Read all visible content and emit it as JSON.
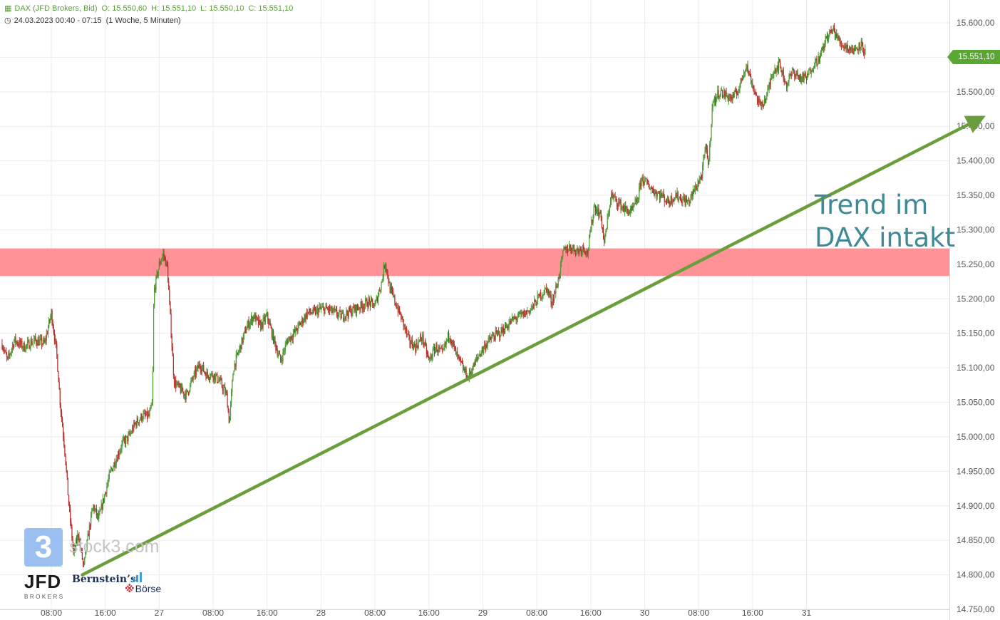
{
  "header": {
    "instrument": "DAX (JFD Brokers, Bid)",
    "open": "O: 15.550,60",
    "high": "H: 15.551,10",
    "low": "L: 15.550,10",
    "close": "C: 15.551,10",
    "period": "24.03.2023 00:40 - 07:15",
    "timeframe": "(1 Woche, 5 Minuten)",
    "icon": "candles-icon",
    "clock_icon": "clock-icon"
  },
  "last_price_label": "15.551,10",
  "annotation": {
    "line1": "Trend im",
    "line2": "DAX intakt"
  },
  "branding": {
    "stock3_mark": "3",
    "stock3_text": "stock3.com",
    "jfd_text": "JFD",
    "jfd_sub": "BROKERS",
    "bernstein_text": "Bernstein’s",
    "boerse_text": "Börse"
  },
  "colors": {
    "up": "#4f9a36",
    "down": "#b3312c",
    "zone": "#ff8c91",
    "trend": "#6a9e3c",
    "grid": "#ececec",
    "annotation": "#3f8a96"
  },
  "chart_data": {
    "type": "candlestick",
    "title": "DAX (JFD Brokers, Bid)",
    "ylim": [
      14750,
      15620
    ],
    "y_ticks": [
      14750,
      14800,
      14850,
      14900,
      14950,
      15000,
      15050,
      15100,
      15150,
      15200,
      15250,
      15300,
      15350,
      15400,
      15450,
      15500,
      15550,
      15600
    ],
    "y_tick_labels": [
      "14.750,00",
      "14.800,00",
      "14.850,00",
      "14.900,00",
      "14.950,00",
      "15.000,00",
      "15.050,00",
      "15.100,00",
      "15.150,00",
      "15.200,00",
      "15.250,00",
      "15.300,00",
      "15.350,00",
      "15.400,00",
      "15.450,00",
      "15.500,00",
      "15.550,00",
      "15.600,00"
    ],
    "x_ticks": [
      {
        "label": "08:00",
        "t": 8
      },
      {
        "label": "16:00",
        "t": 16
      },
      {
        "label": "27",
        "t": 24
      },
      {
        "label": "08:00",
        "t": 32
      },
      {
        "label": "16:00",
        "t": 40
      },
      {
        "label": "28",
        "t": 48
      },
      {
        "label": "08:00",
        "t": 56
      },
      {
        "label": "16:00",
        "t": 64
      },
      {
        "label": "29",
        "t": 72
      },
      {
        "label": "08:00",
        "t": 80
      },
      {
        "label": "16:00",
        "t": 88
      },
      {
        "label": "30",
        "t": 96
      },
      {
        "label": "08:00",
        "t": 104
      },
      {
        "label": "16:00",
        "t": 112
      },
      {
        "label": "31",
        "t": 120
      }
    ],
    "price_path": [
      [
        0.7,
        15135
      ],
      [
        1.5,
        15110
      ],
      [
        2.5,
        15140
      ],
      [
        4,
        15130
      ],
      [
        5.5,
        15140
      ],
      [
        7,
        15135
      ],
      [
        8,
        15180
      ],
      [
        8.8,
        15120
      ],
      [
        9.3,
        15050
      ],
      [
        10,
        14980
      ],
      [
        10.6,
        14900
      ],
      [
        11.3,
        14830
      ],
      [
        12,
        14860
      ],
      [
        12.8,
        14810
      ],
      [
        13.5,
        14860
      ],
      [
        14.2,
        14900
      ],
      [
        15,
        14880
      ],
      [
        16,
        14920
      ],
      [
        16.8,
        14950
      ],
      [
        17.7,
        14970
      ],
      [
        18.5,
        14990
      ],
      [
        19.5,
        15000
      ],
      [
        20.5,
        15020
      ],
      [
        21.5,
        15030
      ],
      [
        22.5,
        15030
      ],
      [
        23,
        15050
      ],
      [
        23.2,
        15210
      ],
      [
        24,
        15250
      ],
      [
        24.6,
        15265
      ],
      [
        25.2,
        15245
      ],
      [
        26.2,
        15080
      ],
      [
        27,
        15070
      ],
      [
        28,
        15060
      ],
      [
        29,
        15085
      ],
      [
        30,
        15105
      ],
      [
        31,
        15090
      ],
      [
        32,
        15090
      ],
      [
        33,
        15080
      ],
      [
        34,
        15060
      ],
      [
        34.4,
        15020
      ],
      [
        35,
        15100
      ],
      [
        36,
        15130
      ],
      [
        37,
        15160
      ],
      [
        38,
        15175
      ],
      [
        39,
        15160
      ],
      [
        40,
        15175
      ],
      [
        41,
        15140
      ],
      [
        42,
        15110
      ],
      [
        43,
        15140
      ],
      [
        44,
        15150
      ],
      [
        45,
        15165
      ],
      [
        46,
        15180
      ],
      [
        47,
        15180
      ],
      [
        48,
        15185
      ],
      [
        49,
        15185
      ],
      [
        50,
        15180
      ],
      [
        51,
        15175
      ],
      [
        52,
        15180
      ],
      [
        53,
        15185
      ],
      [
        54,
        15190
      ],
      [
        55,
        15195
      ],
      [
        56,
        15190
      ],
      [
        57,
        15225
      ],
      [
        57.5,
        15255
      ],
      [
        58.2,
        15215
      ],
      [
        59,
        15195
      ],
      [
        60,
        15170
      ],
      [
        61,
        15140
      ],
      [
        62,
        15130
      ],
      [
        63,
        15145
      ],
      [
        64,
        15110
      ],
      [
        65,
        15130
      ],
      [
        66,
        15120
      ],
      [
        67,
        15150
      ],
      [
        68,
        15120
      ],
      [
        69,
        15100
      ],
      [
        69.8,
        15085
      ],
      [
        70.5,
        15100
      ],
      [
        71.5,
        15120
      ],
      [
        72.5,
        15135
      ],
      [
        73.5,
        15145
      ],
      [
        74.5,
        15150
      ],
      [
        75.5,
        15160
      ],
      [
        76.5,
        15170
      ],
      [
        77.5,
        15175
      ],
      [
        78.5,
        15180
      ],
      [
        79.5,
        15190
      ],
      [
        80.5,
        15205
      ],
      [
        81.5,
        15215
      ],
      [
        82.2,
        15195
      ],
      [
        83,
        15220
      ],
      [
        84,
        15270
      ],
      [
        85,
        15275
      ],
      [
        86,
        15270
      ],
      [
        87,
        15275
      ],
      [
        87.5,
        15265
      ],
      [
        88,
        15300
      ],
      [
        88.5,
        15335
      ],
      [
        89.5,
        15320
      ],
      [
        90,
        15280
      ],
      [
        91,
        15350
      ],
      [
        92,
        15340
      ],
      [
        93,
        15330
      ],
      [
        94,
        15325
      ],
      [
        95,
        15345
      ],
      [
        95.5,
        15375
      ],
      [
        96.5,
        15365
      ],
      [
        97.5,
        15355
      ],
      [
        98.5,
        15350
      ],
      [
        99.5,
        15340
      ],
      [
        100.5,
        15350
      ],
      [
        101.5,
        15345
      ],
      [
        102.5,
        15340
      ],
      [
        103.5,
        15360
      ],
      [
        104.5,
        15380
      ],
      [
        105,
        15420
      ],
      [
        105.5,
        15395
      ],
      [
        106,
        15480
      ],
      [
        107,
        15500
      ],
      [
        108,
        15495
      ],
      [
        109,
        15490
      ],
      [
        110,
        15505
      ],
      [
        111,
        15540
      ],
      [
        112,
        15510
      ],
      [
        113,
        15480
      ],
      [
        114,
        15490
      ],
      [
        115,
        15530
      ],
      [
        116,
        15540
      ],
      [
        117,
        15510
      ],
      [
        118,
        15530
      ],
      [
        119,
        15520
      ],
      [
        120,
        15520
      ],
      [
        121,
        15540
      ],
      [
        122,
        15550
      ],
      [
        123,
        15580
      ],
      [
        124,
        15590
      ],
      [
        125,
        15570
      ],
      [
        126,
        15565
      ],
      [
        127,
        15560
      ],
      [
        128,
        15570
      ],
      [
        128.8,
        15555
      ]
    ],
    "resistance_zone": [
      15233,
      15273
    ],
    "trend_line": {
      "from": [
        12.6,
        14800
      ],
      "to": [
        145.5,
        15460
      ]
    },
    "last_price": 15551.1,
    "ohlc": {
      "open": 15550.6,
      "high": 15551.1,
      "low": 15550.1,
      "close": 15551.1
    },
    "grid": true
  }
}
